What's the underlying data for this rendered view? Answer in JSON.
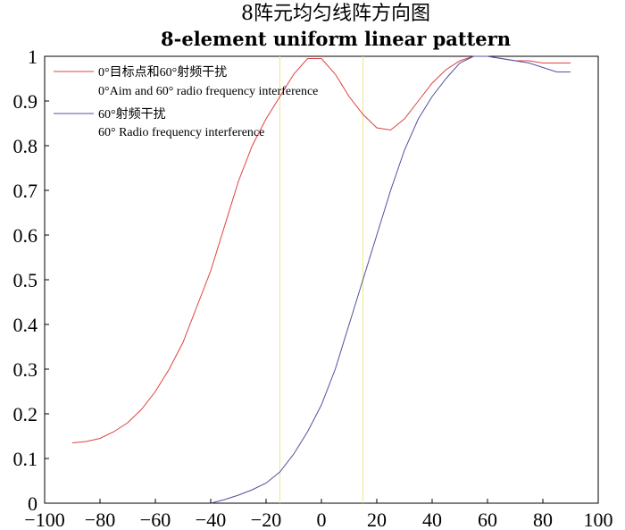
{
  "chart_data": {
    "type": "line",
    "title": "8阵元均匀线阵方向图",
    "subtitle": "8-element uniform linear pattern",
    "xlabel": "",
    "ylabel": "",
    "xlim": [
      -100,
      100
    ],
    "ylim": [
      0,
      1
    ],
    "x_ticks": [
      -100,
      -80,
      -60,
      -40,
      -20,
      0,
      20,
      40,
      60,
      80,
      100
    ],
    "y_ticks": [
      0,
      0.1,
      0.2,
      0.3,
      0.4,
      0.5,
      0.6,
      0.7,
      0.8,
      0.9,
      1
    ],
    "x_tick_labels": [
      "−100",
      "−80",
      "−60",
      "−40",
      "−20",
      "0",
      "20",
      "40",
      "60",
      "80",
      "100"
    ],
    "y_tick_labels": [
      "0",
      "0.1",
      "0.2",
      "0.3",
      "0.4",
      "0.5",
      "0.6",
      "0.7",
      "0.8",
      "0.9",
      "1"
    ],
    "grid": false,
    "legend_position": "top-left",
    "reference_lines_x": [
      -15,
      15
    ],
    "reference_line_color": "#f0e68c",
    "series": [
      {
        "name": "0°目标点和60°射频干扰",
        "name_en": "0°Aim and 60° radio frequency interference",
        "color": "#e04040",
        "x": [
          -90,
          -85,
          -80,
          -75,
          -70,
          -65,
          -60,
          -55,
          -50,
          -45,
          -40,
          -35,
          -30,
          -25,
          -20,
          -15,
          -10,
          -5,
          0,
          5,
          10,
          15,
          20,
          25,
          30,
          35,
          40,
          45,
          50,
          55,
          60,
          65,
          70,
          75,
          80,
          85,
          90
        ],
        "y": [
          0.135,
          0.138,
          0.145,
          0.16,
          0.18,
          0.21,
          0.25,
          0.3,
          0.36,
          0.44,
          0.52,
          0.62,
          0.72,
          0.8,
          0.86,
          0.91,
          0.96,
          0.995,
          0.995,
          0.96,
          0.91,
          0.87,
          0.84,
          0.835,
          0.86,
          0.9,
          0.94,
          0.97,
          0.99,
          1.0,
          1.0,
          0.995,
          0.99,
          0.99,
          0.985,
          0.985,
          0.985
        ]
      },
      {
        "name": "60°射频干扰",
        "name_en": "60° Radio frequency interference",
        "color": "#5050a0",
        "x": [
          -40,
          -35,
          -30,
          -25,
          -20,
          -15,
          -10,
          -5,
          0,
          5,
          10,
          15,
          20,
          25,
          30,
          35,
          40,
          45,
          50,
          55,
          60,
          65,
          70,
          75,
          80,
          85,
          90
        ],
        "y": [
          0.0,
          0.008,
          0.018,
          0.03,
          0.045,
          0.07,
          0.11,
          0.16,
          0.22,
          0.3,
          0.4,
          0.5,
          0.6,
          0.7,
          0.79,
          0.86,
          0.91,
          0.95,
          0.985,
          1.0,
          1.0,
          0.995,
          0.99,
          0.985,
          0.975,
          0.965,
          0.965
        ]
      }
    ]
  }
}
